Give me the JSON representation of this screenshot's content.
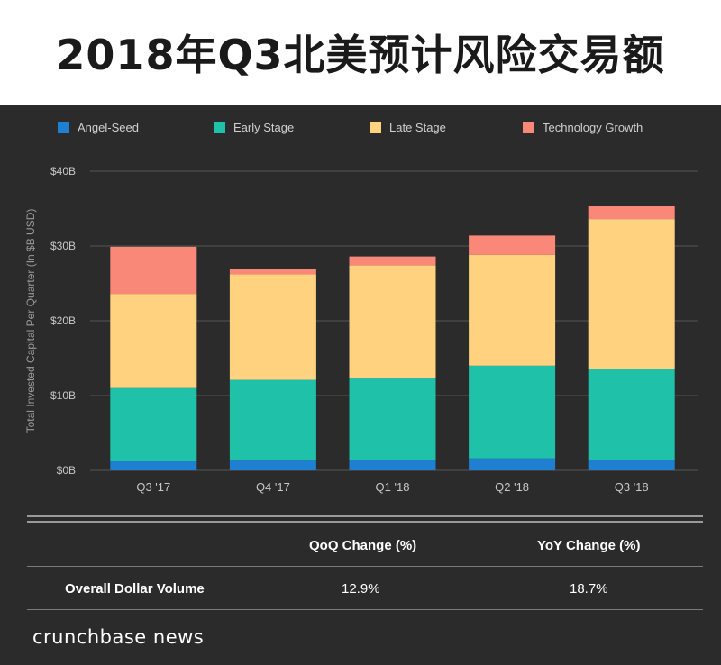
{
  "title": "2018年Q3北美预计风险交易额",
  "colors": {
    "angel_seed": "#1f7fd1",
    "early_stage": "#1fc2a8",
    "late_stage": "#ffd27f",
    "tech_growth": "#f98878",
    "grid": "#555555",
    "axis_text": "#c8c8c8"
  },
  "chart_data": {
    "type": "bar",
    "stacked": true,
    "categories": [
      "Q3 '17",
      "Q4 '17",
      "Q1 '18",
      "Q2 '18",
      "Q3 '18"
    ],
    "series": [
      {
        "name": "Angel-Seed",
        "values": [
          1.2,
          1.3,
          1.4,
          1.6,
          1.4
        ]
      },
      {
        "name": "Early Stage",
        "values": [
          9.8,
          10.8,
          11.0,
          12.4,
          12.2
        ]
      },
      {
        "name": "Late Stage",
        "values": [
          12.6,
          14.1,
          15.0,
          14.8,
          20.0
        ]
      },
      {
        "name": "Technology Growth",
        "values": [
          6.3,
          0.7,
          1.2,
          2.6,
          1.7
        ]
      }
    ],
    "ylabel": "Total Invested Capital Per Quarter (In $B USD)",
    "ylim": [
      0,
      40
    ],
    "yticks": [
      0,
      10,
      20,
      30,
      40
    ],
    "ytick_labels": [
      "$0B",
      "$10B",
      "$20B",
      "$30B",
      "$40B"
    ],
    "grid": true,
    "legend": "top"
  },
  "table": {
    "headers": [
      "QoQ Change (%)",
      "YoY Change (%)"
    ],
    "row_label": "Overall Dollar Volume",
    "values": [
      "12.9%",
      "18.7%"
    ]
  },
  "brand": "crunchbase news"
}
